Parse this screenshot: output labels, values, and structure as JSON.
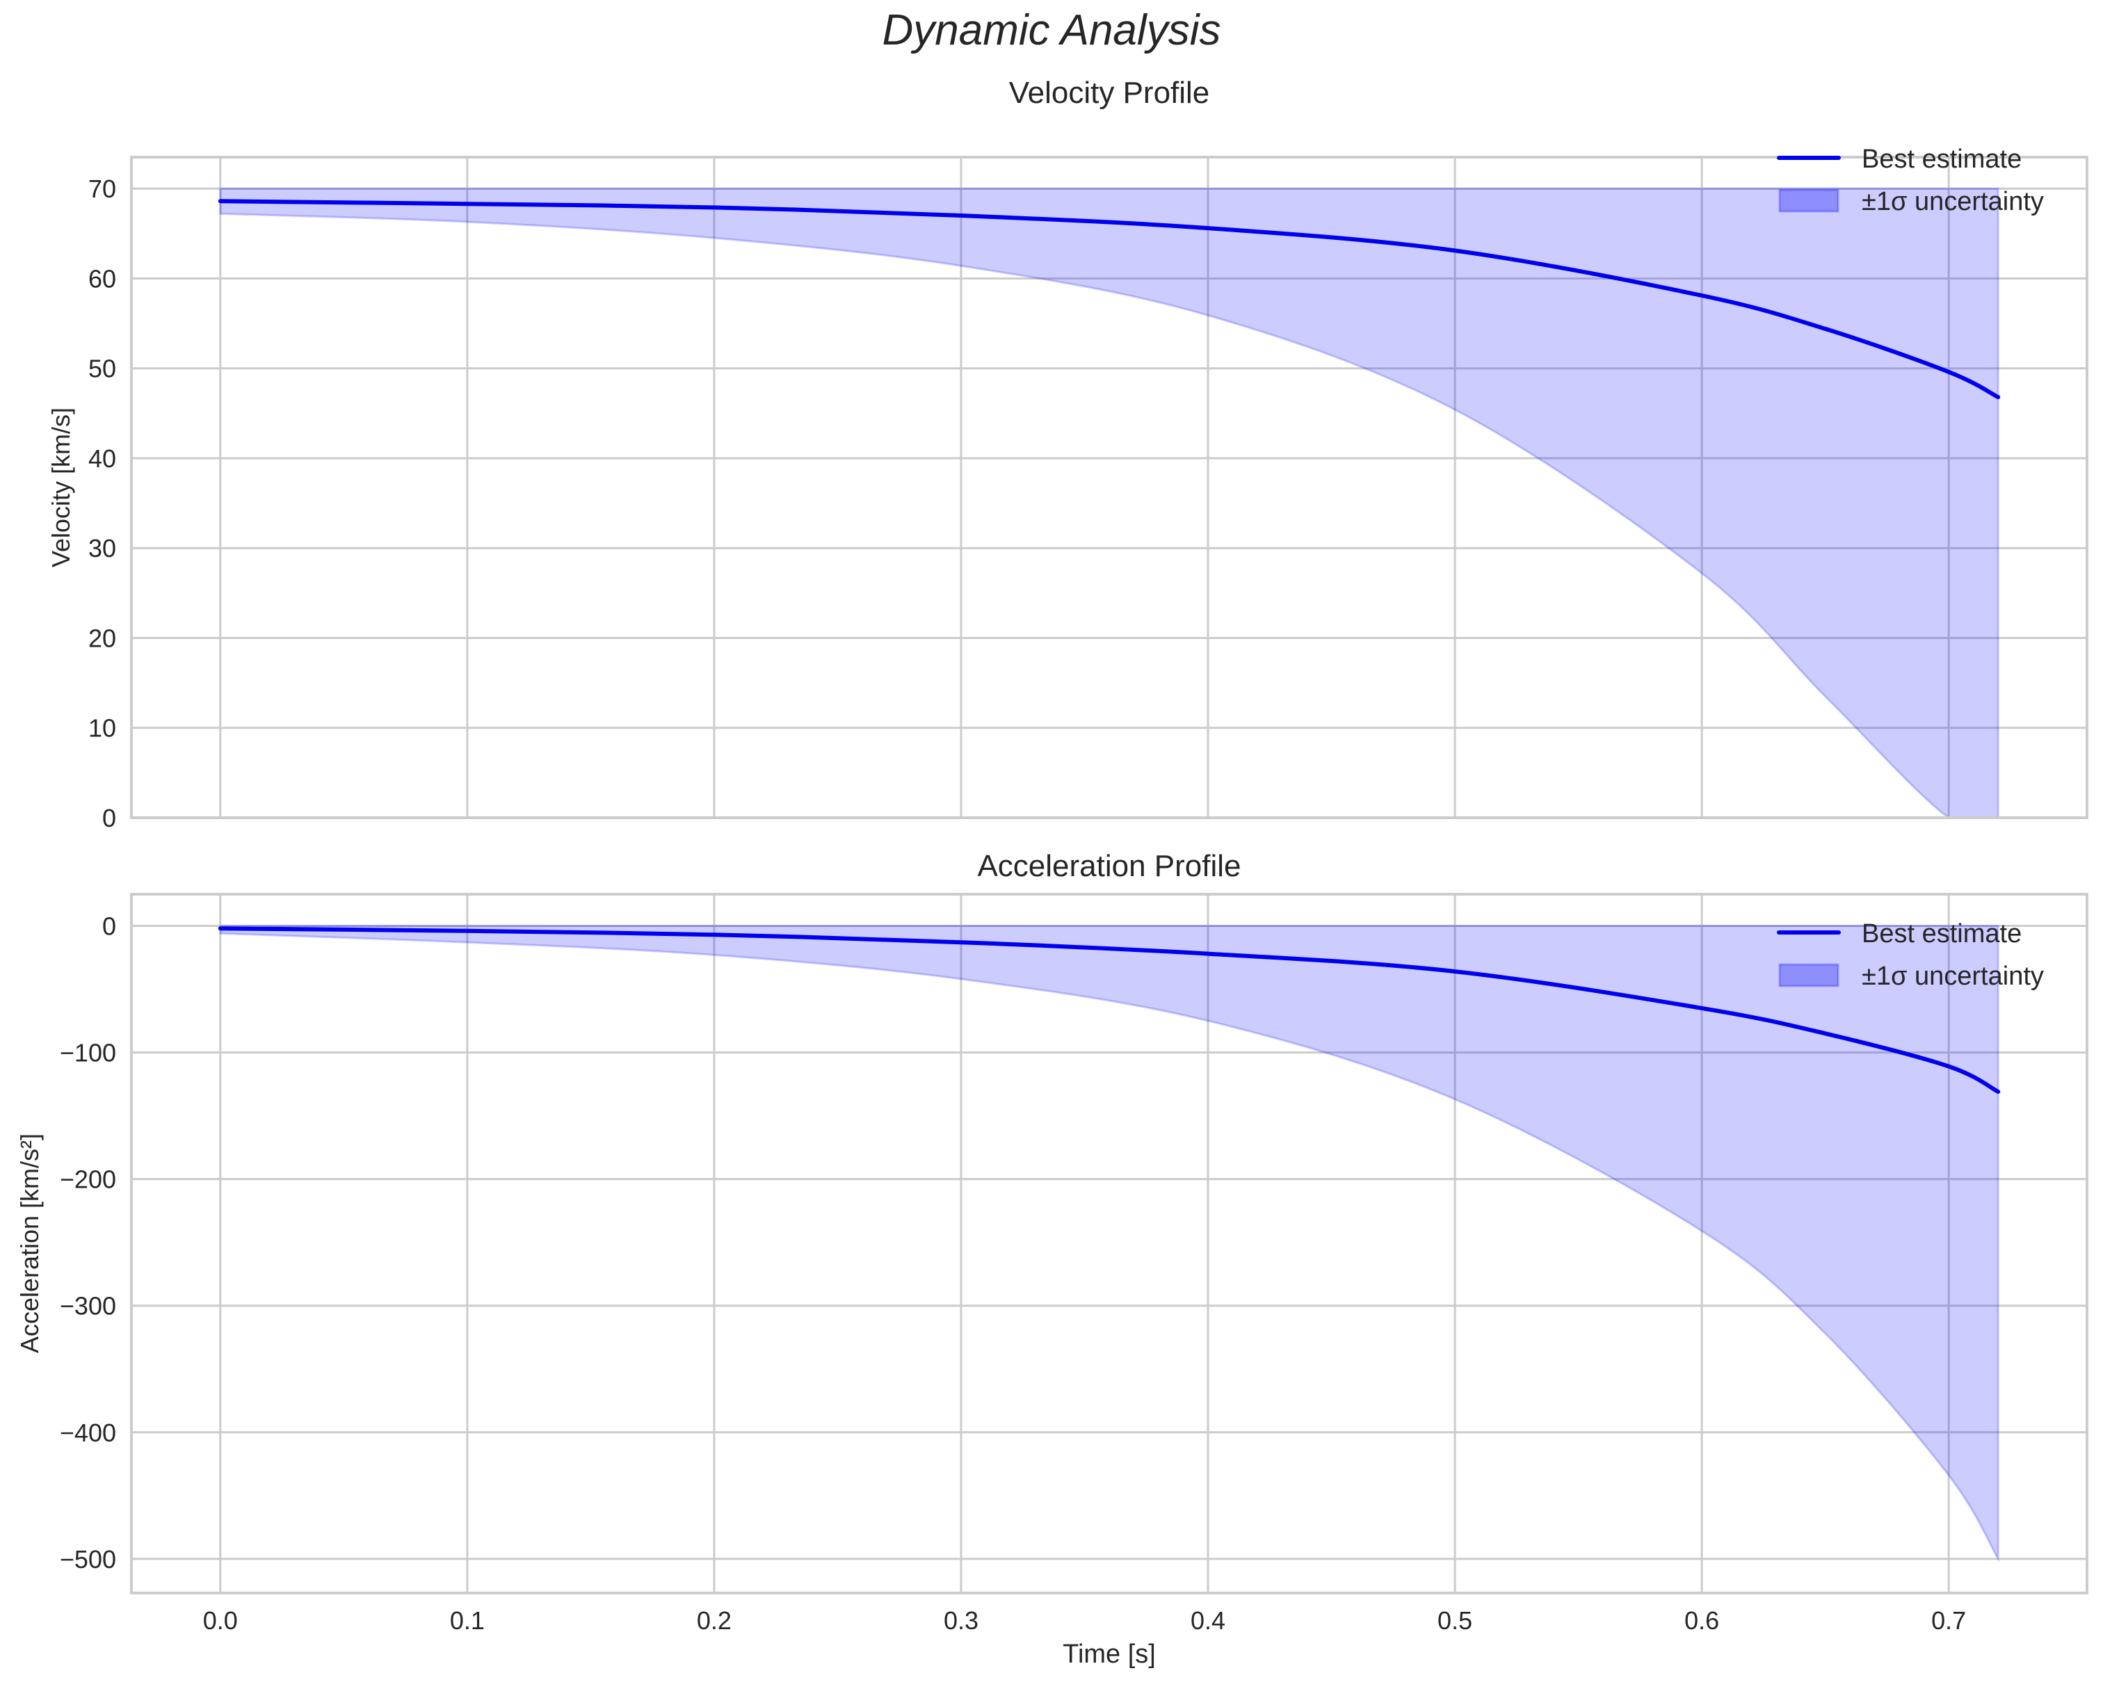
{
  "figure": {
    "suptitle": "Dynamic Analysis",
    "xlabel": "Time [s]",
    "colors": {
      "line": "#0000ee",
      "band_fill": "#0000ff",
      "band_alpha": 0.2,
      "grid": "#cccccc",
      "axes_edge": "#cccccc",
      "text": "#262626"
    }
  },
  "chart_data": [
    {
      "type": "line",
      "title": "Velocity Profile",
      "xlabel": "",
      "ylabel": "Velocity [km/s]",
      "xlim": [
        -0.036,
        0.756
      ],
      "ylim": [
        0,
        73.5
      ],
      "xticks": [
        0.0,
        0.1,
        0.2,
        0.3,
        0.4,
        0.5,
        0.6,
        0.7
      ],
      "xtick_labels_visible": false,
      "yticks": [
        0,
        10,
        20,
        30,
        40,
        50,
        60,
        70
      ],
      "grid": true,
      "legend": {
        "position": "upper right",
        "entries": [
          "Best estimate",
          "±1σ uncertainty"
        ]
      },
      "x": [
        0.0,
        0.1,
        0.2,
        0.3,
        0.4,
        0.5,
        0.6,
        0.65,
        0.7,
        0.72
      ],
      "series": [
        {
          "name": "Best estimate",
          "kind": "line",
          "values": [
            68.6,
            68.3,
            67.9,
            67.0,
            65.6,
            63.1,
            58.1,
            54.4,
            49.6,
            46.8
          ]
        },
        {
          "name": "±1σ uncertainty (upper)",
          "kind": "band-upper",
          "values": [
            70,
            70,
            70,
            70,
            70,
            70,
            70,
            70,
            70,
            70
          ]
        },
        {
          "name": "±1σ uncertainty (lower)",
          "kind": "band-lower",
          "values": [
            67.2,
            66.3,
            64.5,
            61.4,
            55.9,
            45.4,
            27.2,
            13.5,
            0,
            0
          ]
        }
      ]
    },
    {
      "type": "line",
      "title": "Acceleration Profile",
      "xlabel": "Time [s]",
      "ylabel": "Acceleration [km/s²]",
      "xlim": [
        -0.036,
        0.756
      ],
      "ylim": [
        -527,
        25
      ],
      "xticks": [
        0.0,
        0.1,
        0.2,
        0.3,
        0.4,
        0.5,
        0.6,
        0.7
      ],
      "xtick_labels": [
        "0.0",
        "0.1",
        "0.2",
        "0.3",
        "0.4",
        "0.5",
        "0.6",
        "0.7"
      ],
      "yticks": [
        0,
        -100,
        -200,
        -300,
        -400,
        -500
      ],
      "ytick_labels": [
        "0",
        "−100",
        "−200",
        "−300",
        "−400",
        "−500"
      ],
      "grid": true,
      "legend": {
        "position": "upper right",
        "entries": [
          "Best estimate",
          "±1σ uncertainty"
        ]
      },
      "x": [
        0.0,
        0.1,
        0.2,
        0.3,
        0.4,
        0.5,
        0.6,
        0.65,
        0.7,
        0.72
      ],
      "series": [
        {
          "name": "Best estimate",
          "kind": "line",
          "values": [
            -2,
            -4,
            -7,
            -13,
            -22,
            -36,
            -65,
            -85,
            -111,
            -131
          ]
        },
        {
          "name": "±1σ uncertainty (upper)",
          "kind": "band-upper",
          "values": [
            0,
            0,
            0,
            0,
            0,
            0,
            0,
            0,
            0,
            0
          ]
        },
        {
          "name": "±1σ uncertainty (lower)",
          "kind": "band-lower",
          "values": [
            -6,
            -13,
            -23,
            -42,
            -75,
            -137,
            -241,
            -322,
            -434,
            -500
          ]
        }
      ]
    }
  ],
  "legend_labels": {
    "line": "Best estimate",
    "band": "±1σ uncertainty"
  },
  "velocity": {
    "title": "Velocity Profile",
    "ylabel": "Velocity [km/s]",
    "yticks": [
      "0",
      "10",
      "20",
      "30",
      "40",
      "50",
      "60",
      "70"
    ]
  },
  "acceleration": {
    "title": "Acceleration Profile",
    "ylabel": "Acceleration [km/s²]",
    "yticks": [
      "0",
      "−100",
      "−200",
      "−300",
      "−400",
      "−500"
    ],
    "xticks": [
      "0.0",
      "0.1",
      "0.2",
      "0.3",
      "0.4",
      "0.5",
      "0.6",
      "0.7"
    ]
  }
}
